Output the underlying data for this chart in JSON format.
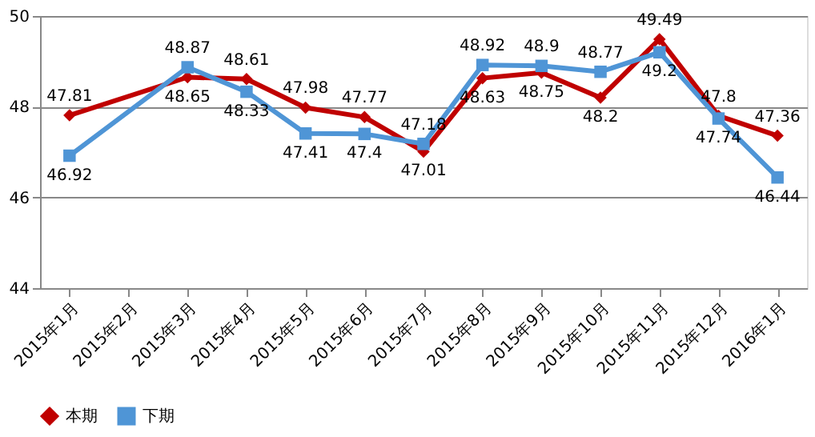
{
  "chart_data": {
    "type": "line",
    "categories": [
      "2015年1月",
      "2015年2月",
      "2015年3月",
      "2015年4月",
      "2015年5月",
      "2015年6月",
      "2015年7月",
      "2015年8月",
      "2015年9月",
      "2015年10月",
      "2015年11月",
      "2015年12月",
      "2016年1月"
    ],
    "series": [
      {
        "name": "本期",
        "color": "#c00000",
        "marker": "diamond",
        "values": [
          47.81,
          null,
          48.65,
          48.61,
          47.98,
          47.77,
          47.01,
          48.63,
          48.75,
          48.2,
          49.49,
          47.8,
          47.36
        ]
      },
      {
        "name": "下期",
        "color": "#4f95d6",
        "marker": "square",
        "values": [
          46.92,
          null,
          48.87,
          48.33,
          47.41,
          47.4,
          47.18,
          48.92,
          48.9,
          48.77,
          49.2,
          47.74,
          46.44
        ]
      }
    ],
    "ylim": [
      44,
      50
    ],
    "yticks": [
      44,
      46,
      48,
      50
    ],
    "grid": "y",
    "legend": "bottom",
    "data_labels": true,
    "line_style": "solid"
  }
}
